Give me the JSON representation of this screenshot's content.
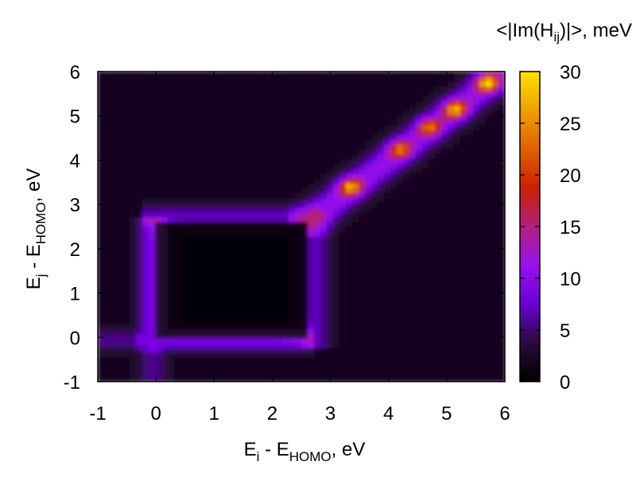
{
  "chart_data": {
    "type": "heatmap",
    "xlabel": {
      "main": "E",
      "sub_i": "i",
      "mid": " - E",
      "sub_homo": "HOMO",
      "unit": ", eV"
    },
    "ylabel": {
      "main": "E",
      "sub_j": "j",
      "mid": " - E",
      "sub_homo": "HOMO",
      "unit": ", eV"
    },
    "colorbar_title": {
      "pre": "<|Im(H",
      "sub": "ij",
      "post": ")|>, meV"
    },
    "xlim": [
      -1,
      6
    ],
    "ylim": [
      -1,
      6
    ],
    "zlim": [
      0,
      30
    ],
    "x_ticks": [
      "-1",
      "0",
      "1",
      "2",
      "3",
      "4",
      "5",
      "6"
    ],
    "y_ticks": [
      "-1",
      "0",
      "1",
      "2",
      "3",
      "4",
      "5",
      "6"
    ],
    "colorbar_ticks": [
      "0",
      "5",
      "10",
      "15",
      "20",
      "25",
      "30"
    ],
    "colormap": [
      "#000000",
      "#2a0a3c",
      "#6a00d6",
      "#9a10f0",
      "#b02080",
      "#cc2000",
      "#e06000",
      "#f0a000",
      "#ffe000"
    ],
    "grid": false,
    "features": {
      "background_level_meV": 2,
      "dark_square": {
        "x": [
          0,
          2.6
        ],
        "y": [
          0,
          2.6
        ],
        "value_meV": 0.5
      },
      "edge_bands_meV": 7,
      "diagonal_band_meV": 9,
      "hotspots": [
        {
          "x": 3.35,
          "y": 3.4,
          "value_meV": 24
        },
        {
          "x": 4.2,
          "y": 4.25,
          "value_meV": 21
        },
        {
          "x": 4.7,
          "y": 4.75,
          "value_meV": 21
        },
        {
          "x": 5.15,
          "y": 5.15,
          "value_meV": 25
        },
        {
          "x": 5.7,
          "y": 5.75,
          "value_meV": 27
        }
      ]
    }
  }
}
